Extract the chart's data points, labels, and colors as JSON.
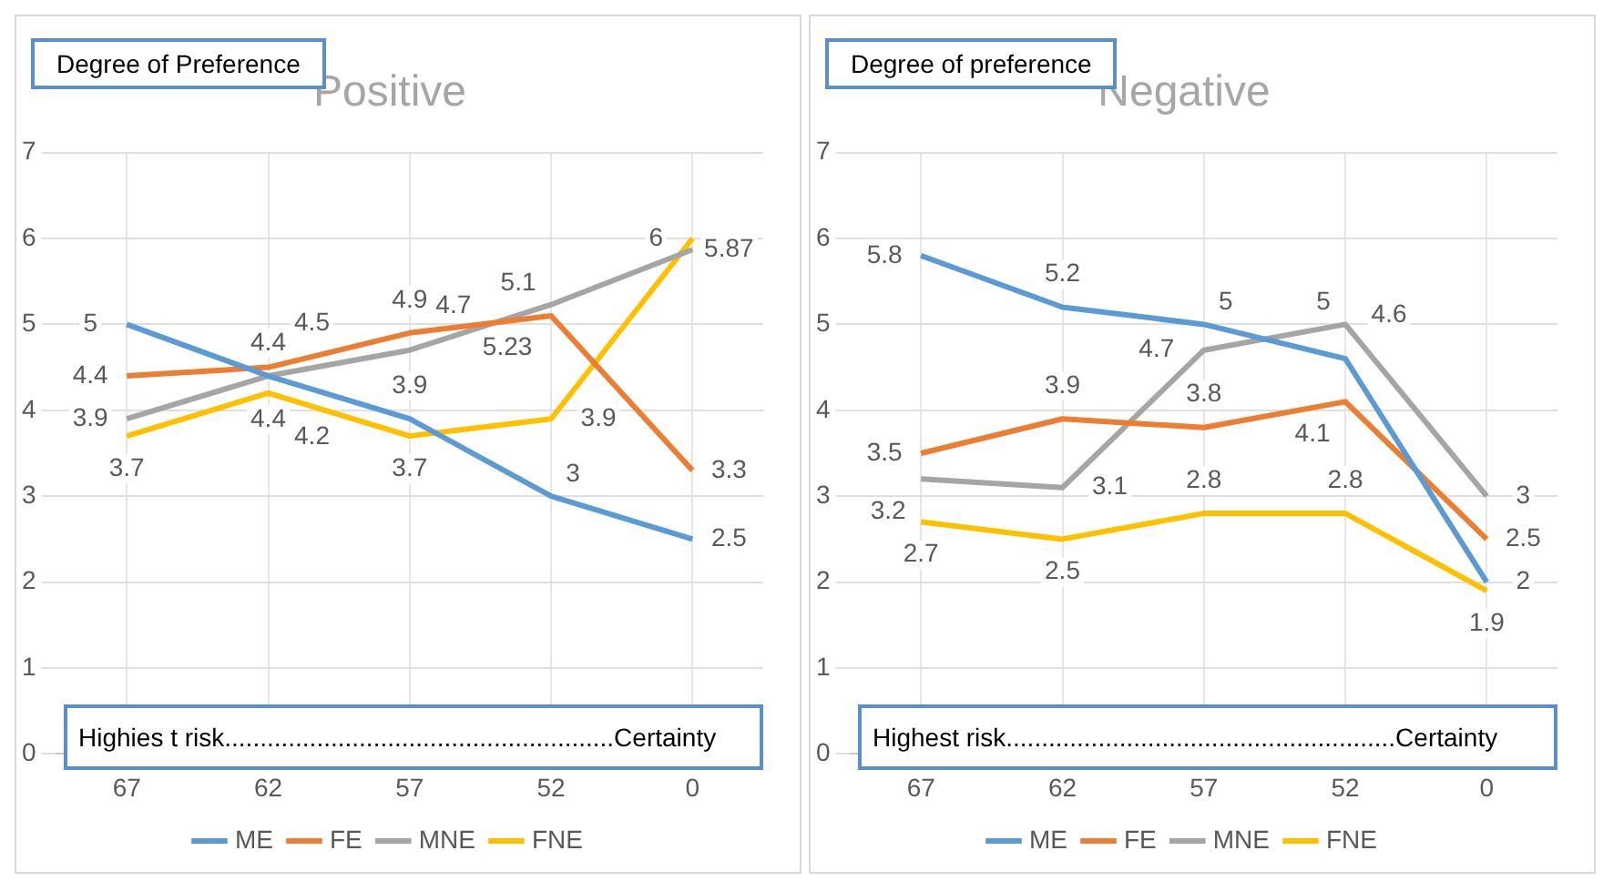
{
  "chart_data": [
    {
      "type": "line",
      "title": "Positive",
      "categories": [
        "67",
        "62",
        "57",
        "52",
        "0"
      ],
      "ylim": [
        0,
        7
      ],
      "yticks": [
        0,
        1,
        2,
        3,
        4,
        5,
        6,
        7
      ],
      "grid": true,
      "legend": "bottom",
      "data_labels": true,
      "marker": "none",
      "line_style": "solid",
      "annotations": [
        "Degree of Preference",
        "Highies t risk.......................................................Certainty"
      ],
      "series": [
        {
          "name": "ME",
          "color": "#5b9bd5",
          "values": [
            5,
            4.4,
            3.9,
            3,
            2.5
          ]
        },
        {
          "name": "FE",
          "color": "#ed7d31",
          "values": [
            4.4,
            4.5,
            4.9,
            5.1,
            3.3
          ]
        },
        {
          "name": "MNE",
          "color": "#a5a5a5",
          "values": [
            3.9,
            4.4,
            4.7,
            5.23,
            5.87
          ]
        },
        {
          "name": "FNE",
          "color": "#ffc000",
          "values": [
            3.7,
            4.2,
            3.7,
            3.9,
            6
          ]
        }
      ]
    },
    {
      "type": "line",
      "title": "Negative",
      "categories": [
        "67",
        "62",
        "57",
        "52",
        "0"
      ],
      "ylim": [
        0,
        7
      ],
      "yticks": [
        0,
        1,
        2,
        3,
        4,
        5,
        6,
        7
      ],
      "grid": true,
      "legend": "bottom",
      "data_labels": true,
      "marker": "none",
      "line_style": "solid",
      "annotations": [
        "Degree of preference",
        "Highest risk.......................................................Certainty"
      ],
      "series": [
        {
          "name": "ME",
          "color": "#5b9bd5",
          "values": [
            5.8,
            5.2,
            5,
            4.6,
            2
          ]
        },
        {
          "name": "FE",
          "color": "#ed7d31",
          "values": [
            3.5,
            3.9,
            3.8,
            4.1,
            2.5
          ]
        },
        {
          "name": "MNE",
          "color": "#a5a5a5",
          "values": [
            3.2,
            3.1,
            4.7,
            5,
            3
          ]
        },
        {
          "name": "FNE",
          "color": "#ffc000",
          "values": [
            2.7,
            2.5,
            2.8,
            2.8,
            1.9
          ]
        }
      ]
    }
  ]
}
